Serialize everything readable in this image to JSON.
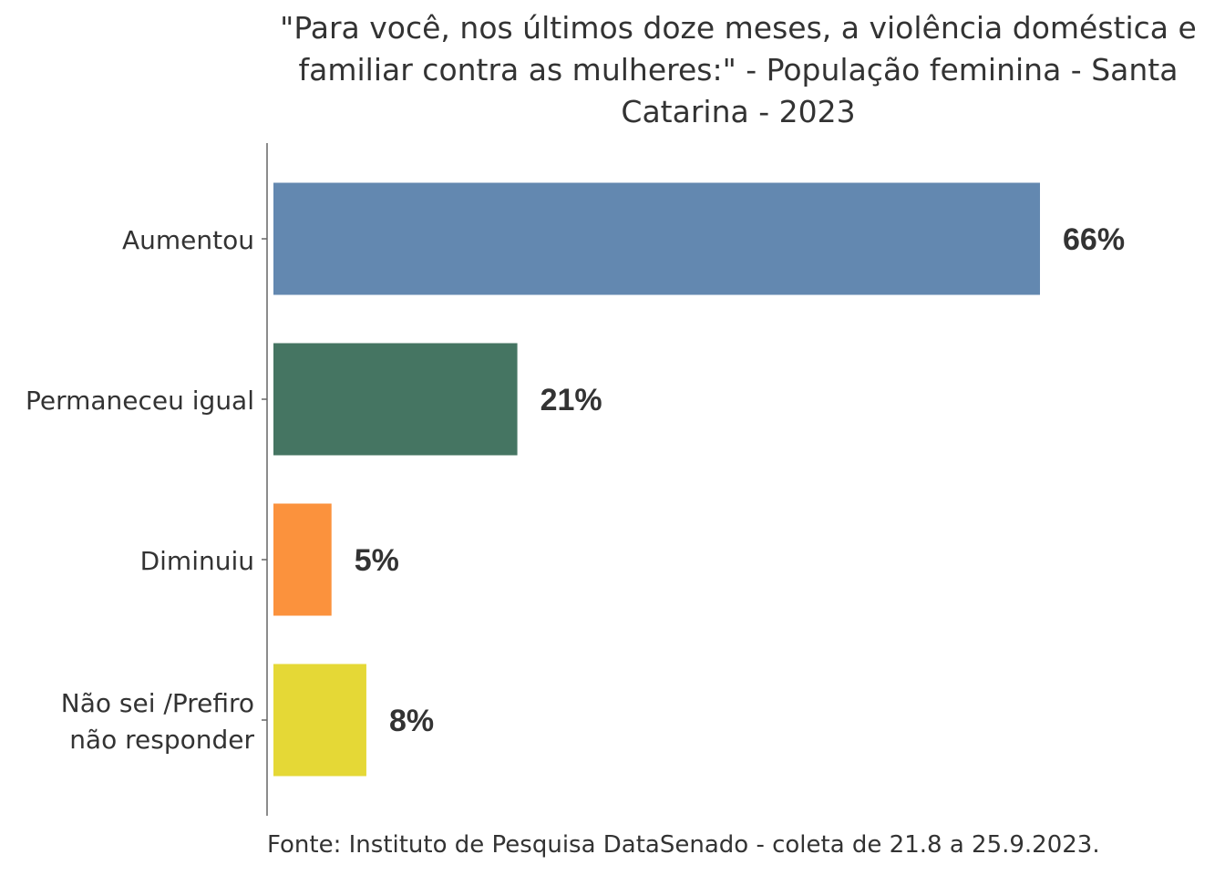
{
  "chart_data": {
    "type": "bar",
    "orientation": "horizontal",
    "title_lines": [
      "\"Para você, nos últimos doze meses, a violência doméstica e",
      "familiar contra as mulheres:\" - População feminina - Santa",
      "Catarina - 2023"
    ],
    "categories": [
      [
        "Aumentou"
      ],
      [
        "Permaneceu igual"
      ],
      [
        "Diminuiu"
      ],
      [
        "Não sei /Prefiro",
        "não responder"
      ]
    ],
    "values": [
      66,
      21,
      5,
      8
    ],
    "value_labels": [
      "66%",
      "21%",
      "5%",
      "8%"
    ],
    "colors": [
      "#6388b0",
      "#457562",
      "#fb923d",
      "#e5d836"
    ],
    "xlabel": "",
    "ylabel": "",
    "xlim": [
      0,
      66
    ],
    "grid": false
  },
  "source": "Fonte: Instituto de Pesquisa DataSenado - coleta de 21.8 a 25.9.2023."
}
